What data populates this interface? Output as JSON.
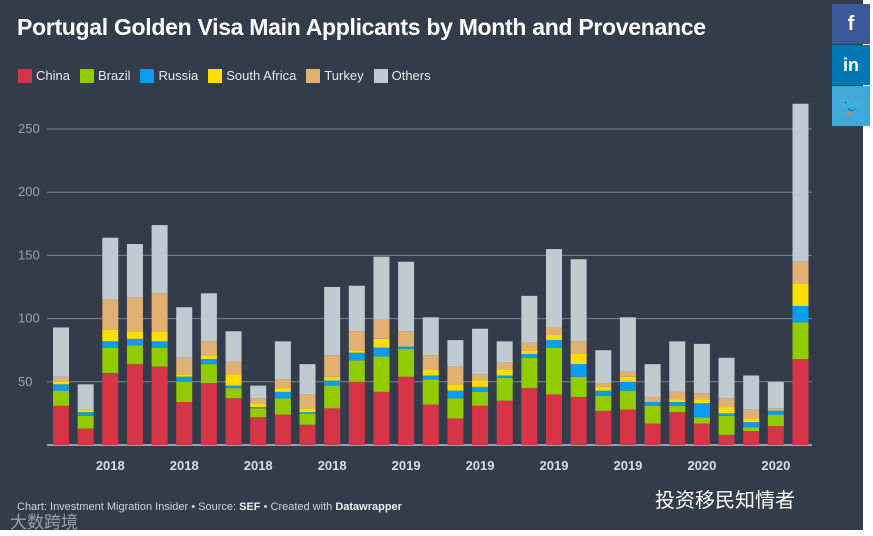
{
  "chart_data": {
    "type": "bar",
    "stacked": true,
    "title": "Portugal Golden Visa Main Applicants by Month and Provenance",
    "xlabel": "",
    "ylabel": "",
    "ylim": [
      0,
      270
    ],
    "yticks": [
      50,
      100,
      150,
      200,
      250
    ],
    "grid": true,
    "legend_position": "top-left",
    "x_tick_labels": [
      {
        "index": 2,
        "label": "2018"
      },
      {
        "index": 5,
        "label": "2018"
      },
      {
        "index": 8,
        "label": "2018"
      },
      {
        "index": 11,
        "label": "2018"
      },
      {
        "index": 14,
        "label": "2019"
      },
      {
        "index": 17,
        "label": "2019"
      },
      {
        "index": 20,
        "label": "2019"
      },
      {
        "index": 23,
        "label": "2019"
      },
      {
        "index": 26,
        "label": "2020"
      },
      {
        "index": 29,
        "label": "2020"
      }
    ],
    "series": [
      {
        "name": "China",
        "color": "#d63447",
        "values": [
          31,
          13,
          57,
          64,
          62,
          34,
          49,
          37,
          22,
          24,
          16,
          29,
          50,
          42,
          54,
          32,
          21,
          31,
          35,
          45,
          40,
          38,
          27,
          28,
          17,
          26,
          17,
          8,
          11,
          15,
          68
        ]
      },
      {
        "name": "Brazil",
        "color": "#92cc00",
        "values": [
          12,
          10,
          20,
          15,
          15,
          16,
          15,
          8,
          7,
          13,
          9,
          18,
          17,
          28,
          22,
          20,
          16,
          11,
          18,
          24,
          37,
          16,
          12,
          15,
          14,
          5,
          5,
          15,
          3,
          9,
          29
        ]
      },
      {
        "name": "Russia",
        "color": "#0b9bf0",
        "values": [
          5,
          3,
          5,
          5,
          5,
          4,
          4,
          2,
          1,
          5,
          1,
          4,
          6,
          7,
          2,
          3,
          6,
          4,
          2,
          3,
          6,
          10,
          4,
          7,
          3,
          3,
          11,
          2,
          4,
          3,
          13
        ]
      },
      {
        "name": "South Africa",
        "color": "#ffdd00",
        "values": [
          2,
          2,
          9,
          6,
          8,
          2,
          3,
          9,
          3,
          3,
          3,
          3,
          2,
          7,
          1,
          5,
          5,
          5,
          5,
          3,
          4,
          8,
          3,
          4,
          0,
          2,
          3,
          5,
          3,
          0,
          18
        ]
      },
      {
        "name": "Turkey",
        "color": "#e0b170",
        "values": [
          4,
          0,
          24,
          27,
          30,
          13,
          11,
          10,
          4,
          7,
          11,
          17,
          15,
          15,
          11,
          11,
          14,
          5,
          5,
          6,
          6,
          10,
          3,
          4,
          4,
          6,
          5,
          7,
          7,
          2,
          17
        ]
      },
      {
        "name": "Others",
        "color": "#bfcbd1",
        "values": [
          39,
          20,
          49,
          42,
          54,
          40,
          38,
          24,
          10,
          30,
          24,
          54,
          36,
          50,
          55,
          30,
          21,
          36,
          17,
          37,
          62,
          65,
          26,
          43,
          26,
          40,
          39,
          32,
          27,
          21,
          125
        ]
      }
    ]
  },
  "footer": {
    "prefix": "Chart: Investment Migration Insider • Source: ",
    "source": "SEF",
    "mid": " • Created with ",
    "tool": "Datawrapper"
  },
  "social": {
    "facebook": "f",
    "linkedin": "in",
    "twitter": "🐦"
  },
  "watermarks": {
    "right": "投资移民知情者",
    "left": "大数跨境"
  }
}
